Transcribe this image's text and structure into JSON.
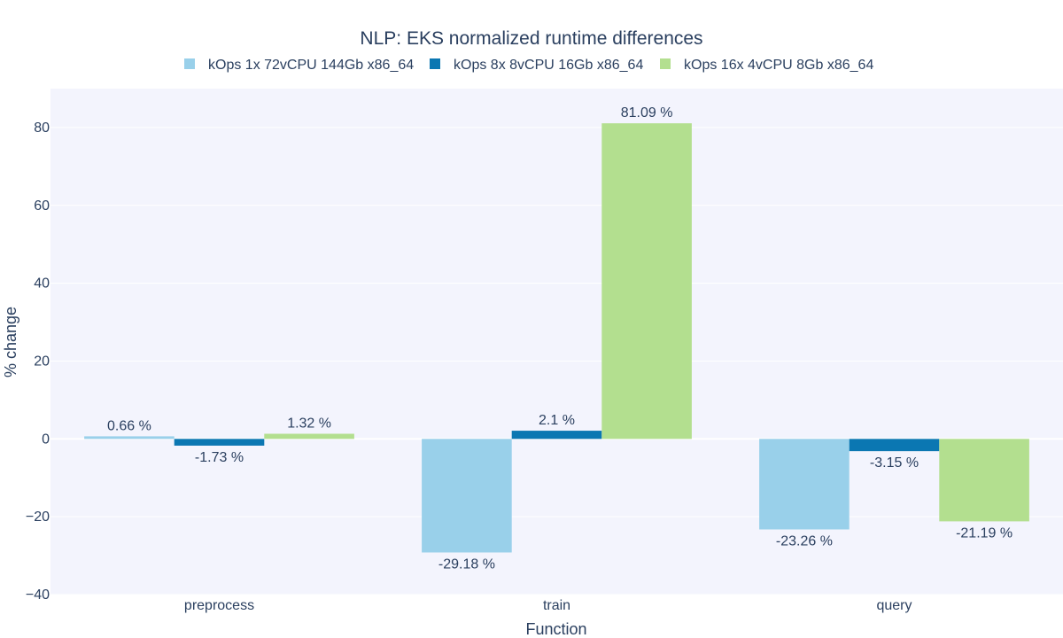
{
  "chart_data": {
    "type": "bar",
    "title": "NLP: EKS normalized runtime differences",
    "xlabel": "Function",
    "ylabel": "% change",
    "categories": [
      "preprocess",
      "train",
      "query"
    ],
    "series": [
      {
        "name": "kOps 1x 72vCPU 144Gb x86_64",
        "color": "#99d0ea",
        "values": [
          0.66,
          -29.18,
          -23.26
        ],
        "labels": [
          "0.66 %",
          "-29.18 %",
          "-23.26 %"
        ]
      },
      {
        "name": "kOps 8x 8vCPU 16Gb x86_64",
        "color": "#0b77b2",
        "values": [
          -1.73,
          2.1,
          -3.15
        ],
        "labels": [
          "-1.73 %",
          "2.1 %",
          "-3.15 %"
        ]
      },
      {
        "name": "kOps 16x 4vCPU 8Gb x86_64",
        "color": "#b3df8f",
        "values": [
          1.32,
          81.09,
          -21.19
        ],
        "labels": [
          "1.32 %",
          "81.09 %",
          "-21.19 %"
        ]
      }
    ],
    "ylim": [
      -40,
      90
    ],
    "yticks": [
      -40,
      -20,
      0,
      20,
      40,
      60,
      80
    ],
    "ytick_labels": [
      "−40",
      "−20",
      "0",
      "20",
      "40",
      "60",
      "80"
    ],
    "grid": true,
    "legend": "top-center",
    "plot_background": "#f3f4fd"
  }
}
